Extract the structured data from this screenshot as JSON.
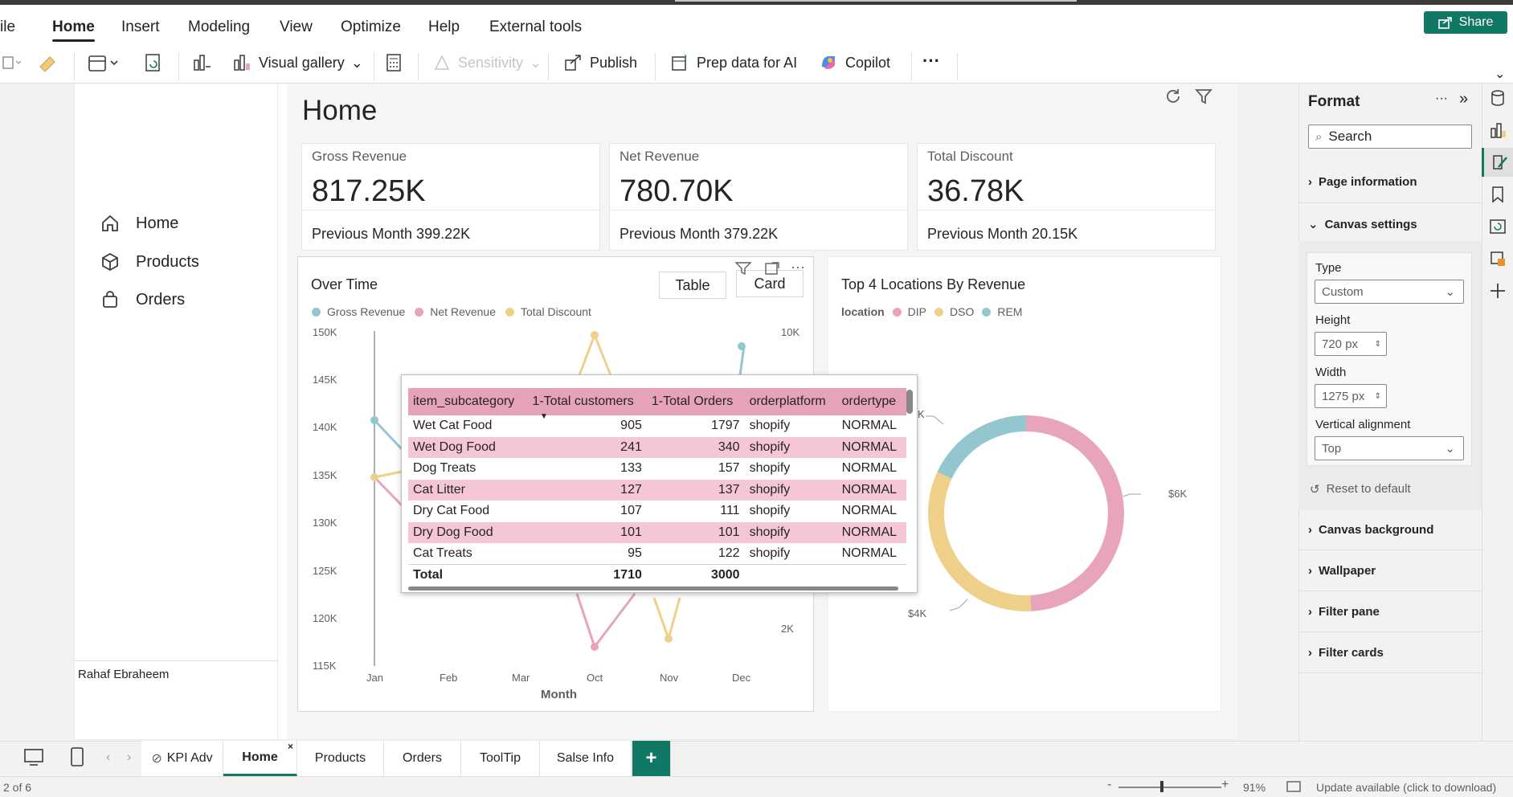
{
  "ribbon": {
    "menus": [
      "ile",
      "Home",
      "Insert",
      "Modeling",
      "View",
      "Optimize",
      "Help",
      "External tools"
    ],
    "share": "Share",
    "tools": {
      "visual_gallery": "Visual gallery",
      "sensitivity": "Sensitivity",
      "publish": "Publish",
      "prep_data": "Prep data for AI",
      "copilot": "Copilot",
      "more": "···"
    }
  },
  "nav": {
    "items": [
      "Home",
      "Products",
      "Orders"
    ],
    "author": "Rahaf Ebraheem"
  },
  "page": {
    "title": "Home"
  },
  "kpis": [
    {
      "label": "Gross Revenue",
      "value": "817.25K",
      "prev": "Previous Month 399.22K"
    },
    {
      "label": "Net Revenue",
      "value": "780.70K",
      "prev": "Previous Month 379.22K"
    },
    {
      "label": "Total Discount",
      "value": "36.78K",
      "prev": "Previous Month 20.15K"
    }
  ],
  "over_time": {
    "title": "Over Time",
    "table_btn": "Table",
    "card_btn": "Card",
    "legend": [
      "Gross Revenue",
      "Net Revenue",
      "Total Discount"
    ],
    "y_left": [
      "150K",
      "145K",
      "140K",
      "135K",
      "130K",
      "125K",
      "120K",
      "115K"
    ],
    "y_right": [
      "10K",
      "2K"
    ],
    "x": [
      "Jan",
      "Feb",
      "Mar",
      "Oct",
      "Nov",
      "Dec"
    ],
    "xlabel": "Month"
  },
  "colors": {
    "gross": "#93c7cf",
    "net": "#e7a4bb",
    "discount": "#efd08b",
    "share": "#117865"
  },
  "donut": {
    "title": "Top 4 Locations By Revenue",
    "legend_title": "location",
    "legend": [
      "DIP",
      "DSO",
      "REM"
    ],
    "labels": {
      "a": "K",
      "b": "$6K",
      "c": "$4K"
    }
  },
  "chart_data": [
    {
      "type": "line",
      "title": "Over Time",
      "x": [
        "Jan",
        "Feb",
        "Mar",
        "Oct",
        "Nov",
        "Dec"
      ],
      "xlabel": "Month",
      "ylim": [
        115000,
        150000
      ],
      "series": [
        {
          "name": "Gross Revenue",
          "values": [
            140500,
            null,
            null,
            null,
            null,
            null
          ]
        },
        {
          "name": "Net Revenue",
          "values": [
            135200,
            null,
            null,
            null,
            null,
            null
          ]
        },
        {
          "name": "Total Discount",
          "values": [
            135200,
            null,
            null,
            null,
            null,
            null
          ]
        }
      ]
    },
    {
      "type": "pie",
      "title": "Top 4 Locations By Revenue",
      "categories": [
        "DIP",
        "DSO",
        "REM"
      ],
      "values": [
        6,
        4,
        2.2
      ]
    }
  ],
  "table": {
    "headers": [
      "item_subcategory",
      "1-Total customers",
      "1-Total Orders",
      "orderplatform",
      "ordertype"
    ],
    "rows": [
      [
        "Wet Cat Food",
        "905",
        "1797",
        "shopify",
        "NORMAL"
      ],
      [
        "Wet Dog Food",
        "241",
        "340",
        "shopify",
        "NORMAL"
      ],
      [
        "Dog Treats",
        "133",
        "157",
        "shopify",
        "NORMAL"
      ],
      [
        "Cat Litter",
        "127",
        "137",
        "shopify",
        "NORMAL"
      ],
      [
        "Dry Cat Food",
        "107",
        "111",
        "shopify",
        "NORMAL"
      ],
      [
        "Dry Dog Food",
        "101",
        "101",
        "shopify",
        "NORMAL"
      ],
      [
        "Cat Treats",
        "95",
        "122",
        "shopify",
        "NORMAL"
      ]
    ],
    "total": [
      "Total",
      "1710",
      "3000"
    ]
  },
  "format": {
    "title": "Format",
    "search": "Search",
    "page_info": "Page information",
    "canvas_settings": "Canvas settings",
    "type_label": "Type",
    "type_value": "Custom",
    "height_label": "Height",
    "height_value": "720 px",
    "width_label": "Width",
    "width_value": "1275 px",
    "valign_label": "Vertical alignment",
    "valign_value": "Top",
    "reset": "Reset to default",
    "sections": [
      "Canvas background",
      "Wallpaper",
      "Filter pane",
      "Filter cards"
    ]
  },
  "tabs": [
    "KPI Adv",
    "Home",
    "Products",
    "Orders",
    "ToolTip",
    "Salse Info"
  ],
  "status": {
    "page": "2 of 6",
    "zoom": "91%",
    "update": "Update available (click to download)"
  }
}
